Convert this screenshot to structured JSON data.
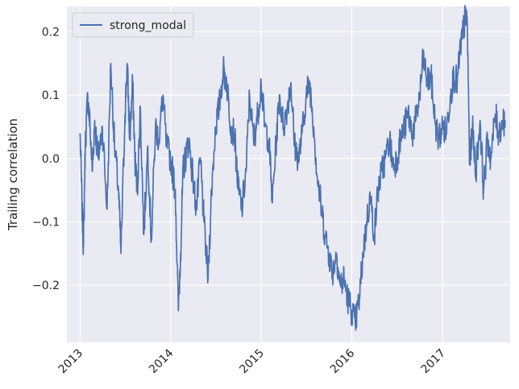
{
  "chart_data": {
    "type": "line",
    "title": "",
    "xlabel": "",
    "ylabel": "Trailing correlation",
    "ylim": [
      -0.29,
      0.24
    ],
    "xlim": [
      "2012-11-09",
      "2017-09-30"
    ],
    "grid": true,
    "legend_position": "top-left",
    "x_ticks": [
      "2013",
      "2014",
      "2015",
      "2016",
      "2017"
    ],
    "y_ticks": [
      -0.2,
      -0.1,
      0.0,
      0.1,
      0.2
    ],
    "y_tick_labels": [
      "−0.2",
      "−0.1",
      "0.0",
      "0.1",
      "0.2"
    ],
    "colors": {
      "line": "#4c72b0",
      "background": "#eaeaf2",
      "grid": "#ffffff"
    },
    "series": [
      {
        "name": "strong_modal",
        "x": [
          "2013-01-01",
          "2013-01-10",
          "2013-01-15",
          "2013-01-22",
          "2013-02-01",
          "2013-02-10",
          "2013-02-20",
          "2013-03-01",
          "2013-03-15",
          "2013-04-01",
          "2013-04-20",
          "2013-05-05",
          "2013-05-20",
          "2013-06-05",
          "2013-06-15",
          "2013-07-01",
          "2013-07-10",
          "2013-07-20",
          "2013-08-01",
          "2013-08-10",
          "2013-08-20",
          "2013-09-01",
          "2013-09-15",
          "2013-10-01",
          "2013-10-15",
          "2013-11-01",
          "2013-11-15",
          "2013-12-01",
          "2013-12-15",
          "2014-01-01",
          "2014-01-20",
          "2014-02-01",
          "2014-02-10",
          "2014-02-20",
          "2014-03-01",
          "2014-03-15",
          "2014-04-01",
          "2014-04-15",
          "2014-05-01",
          "2014-05-15",
          "2014-06-01",
          "2014-06-15",
          "2014-07-01",
          "2014-07-15",
          "2014-08-01",
          "2014-08-15",
          "2014-09-01",
          "2014-09-15",
          "2014-10-01",
          "2014-10-15",
          "2014-11-01",
          "2014-11-15",
          "2014-12-01",
          "2014-12-15",
          "2015-01-01",
          "2015-01-15",
          "2015-02-01",
          "2015-02-15",
          "2015-03-01",
          "2015-03-15",
          "2015-04-01",
          "2015-04-15",
          "2015-05-01",
          "2015-05-15",
          "2015-06-01",
          "2015-06-15",
          "2015-07-01",
          "2015-07-15",
          "2015-08-01",
          "2015-08-15",
          "2015-09-01",
          "2015-09-15",
          "2015-10-01",
          "2015-10-15",
          "2015-11-01",
          "2015-11-15",
          "2015-12-01",
          "2015-12-15",
          "2016-01-01",
          "2016-01-15",
          "2016-02-01",
          "2016-02-15",
          "2016-03-01",
          "2016-03-15",
          "2016-04-01",
          "2016-04-15",
          "2016-05-01",
          "2016-05-15",
          "2016-06-01",
          "2016-06-15",
          "2016-07-01",
          "2016-07-15",
          "2016-08-01",
          "2016-08-15",
          "2016-09-01",
          "2016-09-15",
          "2016-10-01",
          "2016-10-15",
          "2016-11-01",
          "2016-11-15",
          "2016-12-01",
          "2016-12-15",
          "2017-01-01",
          "2017-01-15",
          "2017-02-01",
          "2017-02-15",
          "2017-03-01",
          "2017-03-15",
          "2017-03-25",
          "2017-04-01",
          "2017-04-10",
          "2017-04-20",
          "2017-05-01",
          "2017-05-15",
          "2017-06-01",
          "2017-06-15",
          "2017-07-01",
          "2017-07-15",
          "2017-08-01",
          "2017-08-15",
          "2017-09-01",
          "2017-09-10"
        ],
        "values": [
          0.04,
          -0.09,
          -0.14,
          0.02,
          0.1,
          0.05,
          -0.02,
          0.06,
          0.0,
          0.05,
          -0.08,
          0.15,
          0.02,
          -0.05,
          -0.15,
          0.07,
          0.15,
          0.03,
          0.12,
          0.0,
          -0.05,
          0.08,
          -0.12,
          0.02,
          -0.13,
          0.05,
          0.03,
          0.1,
          0.02,
          0.0,
          -0.05,
          -0.24,
          -0.15,
          -0.02,
          0.0,
          0.03,
          -0.03,
          -0.08,
          0.0,
          -0.1,
          -0.19,
          -0.05,
          0.05,
          0.08,
          0.14,
          0.12,
          0.05,
          0.04,
          -0.05,
          -0.08,
          -0.02,
          0.1,
          0.03,
          0.06,
          0.12,
          0.05,
          0.03,
          -0.07,
          0.02,
          0.1,
          0.05,
          0.08,
          0.12,
          0.02,
          0.0,
          0.04,
          0.1,
          0.12,
          0.05,
          -0.03,
          -0.08,
          -0.12,
          -0.15,
          -0.18,
          -0.15,
          -0.2,
          -0.19,
          -0.22,
          -0.24,
          -0.26,
          -0.22,
          -0.15,
          -0.1,
          -0.06,
          -0.12,
          -0.05,
          -0.02,
          0.0,
          0.03,
          -0.01,
          0.0,
          0.03,
          0.05,
          0.07,
          0.04,
          0.06,
          0.1,
          0.16,
          0.12,
          0.13,
          0.06,
          0.03,
          0.05,
          0.04,
          0.1,
          0.13,
          0.12,
          0.18,
          0.2,
          0.22,
          0.22,
          -0.01,
          0.05,
          -0.02,
          0.06,
          -0.05,
          0.03,
          0.0,
          0.07,
          0.04,
          0.06,
          0.06
        ]
      }
    ]
  }
}
